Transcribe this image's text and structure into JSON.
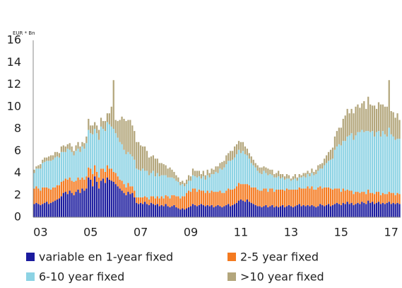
{
  "chart_data": {
    "type": "stacked_bar",
    "y_label": "EUR * Bn",
    "categories": [
      null,
      null,
      null,
      "03",
      null,
      null,
      null,
      null,
      null,
      null,
      null,
      null,
      null,
      null,
      null,
      null,
      null,
      null,
      null,
      null,
      null,
      null,
      null,
      null,
      null,
      null,
      null,
      "05",
      null,
      null,
      null,
      null,
      null,
      null,
      null,
      null,
      null,
      null,
      null,
      null,
      null,
      null,
      null,
      null,
      null,
      null,
      null,
      null,
      null,
      null,
      null,
      "07",
      null,
      null,
      null,
      null,
      null,
      null,
      null,
      null,
      null,
      null,
      null,
      null,
      null,
      null,
      null,
      null,
      null,
      null,
      null,
      null,
      null,
      null,
      null,
      "09",
      null,
      null,
      null,
      null,
      null,
      null,
      null,
      null,
      null,
      null,
      null,
      null,
      null,
      null,
      null,
      null,
      null,
      null,
      null,
      null,
      null,
      null,
      null,
      "11",
      null,
      null,
      null,
      null,
      null,
      null,
      null,
      null,
      null,
      null,
      null,
      null,
      null,
      null,
      null,
      null,
      null,
      null,
      null,
      null,
      null,
      null,
      null,
      "13",
      null,
      null,
      null,
      null,
      null,
      null,
      null,
      null,
      null,
      null,
      null,
      null,
      null,
      null,
      null,
      null,
      null,
      null,
      null,
      null,
      null,
      null,
      null,
      "15",
      null,
      null,
      null,
      null,
      null,
      null,
      null,
      null,
      null,
      null,
      null,
      null,
      null,
      null,
      null,
      null,
      null,
      null,
      null,
      null,
      null,
      null,
      null,
      "17",
      null,
      null,
      null,
      null
    ],
    "series": [
      {
        "name": "variable en 1-year fixed",
        "color": "#1b1b9e",
        "values": [
          1.2,
          1.3,
          1.2,
          1.1,
          1.2,
          1.3,
          1.4,
          1.2,
          1.3,
          1.4,
          1.5,
          1.6,
          1.7,
          1.9,
          2.2,
          2.3,
          2.1,
          2.4,
          2.2,
          2.0,
          2.3,
          2.5,
          2.2,
          2.6,
          2.4,
          2.6,
          3.6,
          3.4,
          2.8,
          3.7,
          3.2,
          2.6,
          3.3,
          3.5,
          3.1,
          3.6,
          3.4,
          3.3,
          3.2,
          3.0,
          2.8,
          2.6,
          2.4,
          2.2,
          2.0,
          2.3,
          2.1,
          2.2,
          1.8,
          1.3,
          1.2,
          1.3,
          1.2,
          1.4,
          1.2,
          1.1,
          1.3,
          1.2,
          1.1,
          1.2,
          1.0,
          1.1,
          1.0,
          1.2,
          1.0,
          0.9,
          1.0,
          1.1,
          0.9,
          0.8,
          0.7,
          0.8,
          0.7,
          0.8,
          0.9,
          1.0,
          1.2,
          1.1,
          1.0,
          1.1,
          1.2,
          1.1,
          1.0,
          1.1,
          1.0,
          1.1,
          0.9,
          1.0,
          1.1,
          1.0,
          0.9,
          1.0,
          1.1,
          1.2,
          1.0,
          1.1,
          1.2,
          1.3,
          1.5,
          1.6,
          1.5,
          1.4,
          1.6,
          1.4,
          1.3,
          1.2,
          1.1,
          1.0,
          1.0,
          0.9,
          1.0,
          1.1,
          0.9,
          1.0,
          1.1,
          0.9,
          1.0,
          0.9,
          1.0,
          1.1,
          0.9,
          1.0,
          1.1,
          1.0,
          0.9,
          1.0,
          1.1,
          1.2,
          1.0,
          1.1,
          1.0,
          1.1,
          1.0,
          1.1,
          1.0,
          0.9,
          1.0,
          1.2,
          1.1,
          1.0,
          1.1,
          1.2,
          1.0,
          1.1,
          1.2,
          1.3,
          1.2,
          1.1,
          1.3,
          1.2,
          1.4,
          1.2,
          1.3,
          1.1,
          1.2,
          1.3,
          1.2,
          1.4,
          1.3,
          1.2,
          1.5,
          1.3,
          1.4,
          1.2,
          1.3,
          1.4,
          1.2,
          1.3,
          1.2,
          1.3,
          1.4,
          1.2,
          1.3,
          1.2,
          1.3,
          1.2
        ]
      },
      {
        "name": "2-5 year fixed",
        "color": "#f47a20",
        "values": [
          1.4,
          1.5,
          1.4,
          1.3,
          1.5,
          1.4,
          1.3,
          1.4,
          1.2,
          1.3,
          1.2,
          1.3,
          1.2,
          1.3,
          1.1,
          1.2,
          1.3,
          1.2,
          1.1,
          1.2,
          1.0,
          1.1,
          1.2,
          1.0,
          1.0,
          1.1,
          0.9,
          1.0,
          1.1,
          1.0,
          0.9,
          1.0,
          1.1,
          0.9,
          1.0,
          1.1,
          1.0,
          1.1,
          0.9,
          1.0,
          0.9,
          0.8,
          0.9,
          0.8,
          0.7,
          0.8,
          0.7,
          0.6,
          0.6,
          0.5,
          0.6,
          0.5,
          0.6,
          0.5,
          0.6,
          0.5,
          0.6,
          0.7,
          0.6,
          0.7,
          0.7,
          0.8,
          0.7,
          0.8,
          0.9,
          0.8,
          1.0,
          0.9,
          1.0,
          1.1,
          1.0,
          1.1,
          1.2,
          1.4,
          1.5,
          1.3,
          1.4,
          1.5,
          1.3,
          1.4,
          1.2,
          1.3,
          1.2,
          1.3,
          1.2,
          1.3,
          1.4,
          1.3,
          1.2,
          1.4,
          1.3,
          1.2,
          1.3,
          1.4,
          1.5,
          1.4,
          1.4,
          1.5,
          1.6,
          1.4,
          1.5,
          1.6,
          1.4,
          1.5,
          1.4,
          1.5,
          1.6,
          1.5,
          1.4,
          1.5,
          1.6,
          1.5,
          1.4,
          1.6,
          1.5,
          1.4,
          1.5,
          1.6,
          1.5,
          1.4,
          1.5,
          1.6,
          1.4,
          1.5,
          1.6,
          1.5,
          1.4,
          1.5,
          1.6,
          1.5,
          1.6,
          1.7,
          1.6,
          1.7,
          1.5,
          1.6,
          1.7,
          1.6,
          1.5,
          1.7,
          1.6,
          1.5,
          1.6,
          1.4,
          1.4,
          1.3,
          1.4,
          1.2,
          1.3,
          1.2,
          1.1,
          1.2,
          1.1,
          1.0,
          1.1,
          1.0,
          1.0,
          0.9,
          1.0,
          0.9,
          1.0,
          0.9,
          0.8,
          0.9,
          1.0,
          0.9,
          0.8,
          0.9,
          0.9,
          0.8,
          0.9,
          1.0,
          0.9,
          0.8,
          0.9,
          0.9
        ]
      },
      {
        "name": "6-10 year fixed",
        "color": "#8dd3e4",
        "values": [
          1.4,
          1.6,
          1.8,
          2.0,
          2.2,
          2.3,
          2.4,
          2.5,
          2.6,
          2.5,
          2.7,
          2.6,
          2.5,
          2.7,
          2.6,
          2.4,
          2.8,
          2.5,
          2.6,
          2.4,
          2.7,
          2.6,
          2.5,
          2.8,
          2.8,
          3.0,
          3.4,
          3.2,
          3.6,
          3.3,
          3.5,
          3.4,
          3.8,
          3.6,
          3.7,
          3.9,
          4.0,
          3.8,
          3.9,
          3.6,
          3.5,
          3.4,
          3.3,
          3.1,
          3.0,
          2.8,
          2.9,
          2.7,
          2.8,
          2.6,
          2.5,
          2.4,
          2.6,
          2.3,
          2.4,
          2.2,
          2.1,
          2.3,
          2.0,
          2.1,
          2.0,
          1.9,
          2.1,
          1.8,
          1.7,
          1.9,
          1.6,
          1.5,
          1.4,
          1.3,
          1.2,
          1.1,
          0.9,
          0.8,
          0.9,
          1.0,
          1.2,
          1.1,
          1.3,
          1.2,
          1.1,
          1.3,
          1.2,
          1.4,
          1.4,
          1.5,
          1.6,
          1.8,
          1.7,
          2.0,
          2.1,
          2.3,
          2.4,
          2.5,
          2.6,
          2.7,
          2.8,
          2.9,
          3.0,
          2.8,
          3.0,
          2.7,
          2.6,
          2.4,
          2.2,
          2.0,
          1.8,
          1.7,
          1.6,
          1.5,
          1.6,
          1.4,
          1.5,
          1.3,
          1.2,
          1.3,
          1.1,
          1.2,
          1.0,
          1.1,
          1.0,
          0.9,
          1.0,
          0.8,
          0.9,
          1.0,
          0.8,
          0.9,
          1.0,
          1.1,
          1.0,
          1.1,
          1.1,
          1.2,
          1.3,
          1.4,
          1.5,
          1.6,
          1.8,
          2.0,
          2.2,
          2.4,
          2.6,
          2.8,
          3.5,
          3.8,
          4.0,
          4.2,
          4.3,
          4.5,
          4.8,
          5.0,
          5.2,
          4.9,
          5.1,
          5.4,
          5.5,
          5.6,
          5.4,
          5.7,
          5.3,
          5.5,
          5.6,
          5.2,
          5.4,
          5.5,
          5.3,
          5.6,
          5.4,
          5.2,
          5.8,
          5.3,
          5.1,
          5.0,
          4.9,
          5.0
        ]
      },
      {
        "name": ">10 year fixed",
        "color": "#b3a67c",
        "values": [
          0.3,
          0.2,
          0.3,
          0.4,
          0.3,
          0.4,
          0.3,
          0.4,
          0.5,
          0.4,
          0.5,
          0.4,
          0.4,
          0.5,
          0.6,
          0.5,
          0.4,
          0.6,
          0.5,
          0.4,
          0.5,
          0.6,
          0.5,
          0.4,
          0.5,
          0.6,
          1.0,
          0.7,
          0.8,
          0.6,
          0.7,
          0.9,
          0.8,
          0.7,
          0.9,
          0.8,
          1.0,
          1.8,
          4.4,
          1.2,
          1.5,
          2.0,
          2.5,
          2.8,
          3.0,
          2.9,
          3.1,
          2.8,
          2.6,
          2.4,
          2.5,
          2.3,
          2.0,
          2.2,
          1.8,
          1.6,
          1.5,
          1.4,
          1.6,
          1.3,
          1.2,
          1.1,
          1.0,
          0.9,
          0.8,
          0.9,
          0.7,
          0.6,
          0.5,
          0.4,
          0.3,
          0.3,
          0.3,
          0.4,
          0.5,
          0.4,
          0.6,
          0.5,
          0.6,
          0.5,
          0.4,
          0.5,
          0.4,
          0.5,
          0.4,
          0.5,
          0.4,
          0.5,
          0.6,
          0.5,
          0.7,
          0.6,
          0.8,
          0.7,
          0.9,
          0.8,
          1.0,
          0.9,
          0.8,
          1.0,
          0.8,
          0.7,
          0.6,
          0.5,
          0.6,
          0.5,
          0.4,
          0.5,
          0.5,
          0.6,
          0.4,
          0.5,
          0.6,
          0.4,
          0.5,
          0.3,
          0.4,
          0.5,
          0.4,
          0.3,
          0.3,
          0.4,
          0.3,
          0.2,
          0.3,
          0.4,
          0.3,
          0.3,
          0.2,
          0.3,
          0.4,
          0.3,
          0.3,
          0.4,
          0.3,
          0.4,
          0.5,
          0.4,
          0.5,
          0.6,
          0.7,
          0.8,
          0.9,
          1.0,
          1.2,
          1.4,
          1.5,
          1.6,
          2.0,
          2.3,
          2.5,
          2.0,
          2.2,
          2.4,
          2.6,
          2.5,
          2.2,
          2.4,
          2.8,
          2.0,
          3.1,
          2.5,
          2.3,
          2.8,
          2.1,
          2.6,
          2.9,
          2.4,
          2.5,
          2.7,
          4.3,
          2.1,
          2.2,
          2.0,
          2.3,
          1.7
        ]
      }
    ],
    "ylim": [
      0,
      16
    ],
    "yticks": [
      0,
      2,
      4,
      6,
      8,
      10,
      12,
      14,
      16
    ],
    "grid": false
  }
}
